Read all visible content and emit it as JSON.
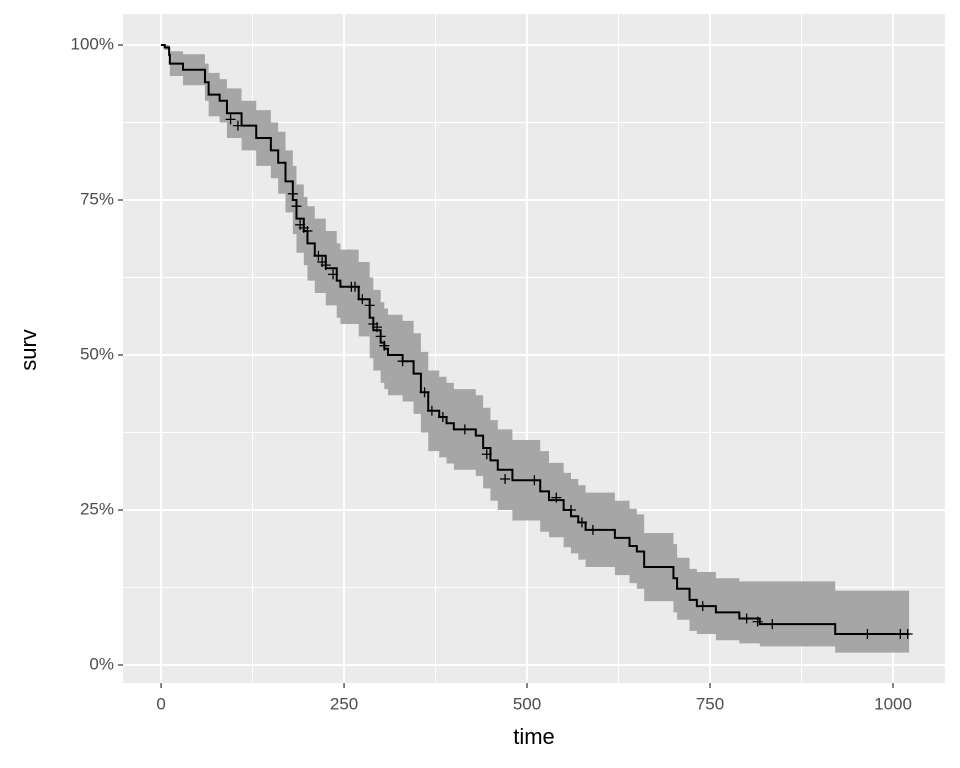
{
  "chart_data": {
    "type": "step",
    "x_label": "time",
    "y_label": "surv",
    "x": [
      0,
      5,
      11,
      12,
      30,
      60,
      65,
      80,
      90,
      110,
      130,
      150,
      160,
      170,
      180,
      185,
      195,
      200,
      210,
      225,
      240,
      245,
      270,
      285,
      290,
      300,
      305,
      310,
      330,
      345,
      355,
      365,
      380,
      390,
      400,
      430,
      440,
      450,
      460,
      480,
      518,
      530,
      550,
      560,
      570,
      580,
      620,
      640,
      650,
      660,
      700,
      705,
      722,
      732,
      758,
      790,
      818,
      921,
      1022
    ],
    "surv": [
      100,
      99.6,
      98.4,
      97,
      96,
      94,
      92,
      91,
      89,
      87,
      85,
      83,
      81,
      78,
      75,
      72,
      70,
      68,
      66,
      64,
      62,
      61,
      59,
      56,
      54,
      52,
      51,
      50,
      49,
      47,
      44,
      41,
      40,
      39,
      38,
      37,
      35,
      33,
      31.5,
      29.8,
      28,
      26.6,
      25,
      24,
      23,
      21.8,
      20.5,
      19.2,
      18.3,
      15.8,
      14,
      12.3,
      10.5,
      9.5,
      8.5,
      7.5,
      6.6,
      5.0,
      5.0
    ],
    "lower": [
      100,
      99.2,
      96.9,
      95,
      93.5,
      91,
      88.5,
      87.5,
      85,
      83,
      80.5,
      78.5,
      76,
      73,
      69.5,
      66.5,
      64.5,
      62,
      60,
      58,
      56,
      55,
      53,
      49.5,
      47.5,
      45.5,
      44.5,
      43.5,
      42.5,
      40.5,
      37.5,
      34.5,
      33.5,
      32.5,
      31.5,
      30.5,
      28.5,
      26.5,
      25,
      23.3,
      21.5,
      20.6,
      19,
      18,
      17,
      15.8,
      14.5,
      13.2,
      12.3,
      10.3,
      8.5,
      7.3,
      5.5,
      5,
      4,
      3.5,
      3,
      2,
      2
    ],
    "upper": [
      100,
      100,
      99.9,
      99,
      98.5,
      97,
      95.5,
      94.5,
      93,
      91,
      89.5,
      87.5,
      86,
      83,
      80.5,
      77.5,
      75.5,
      74,
      72,
      70,
      68,
      67,
      65,
      62.5,
      60.5,
      58.5,
      57.5,
      56.5,
      55.5,
      53.5,
      50.5,
      47.5,
      46.5,
      45.5,
      44.5,
      43.5,
      41.5,
      39.5,
      38,
      36.3,
      34.5,
      32.6,
      31,
      30,
      29,
      27.8,
      26.5,
      25.2,
      24.3,
      21.3,
      19.5,
      17.3,
      15.5,
      15,
      14,
      13.5,
      13.5,
      12,
      12
    ],
    "censor_x": [
      95,
      105,
      180,
      185,
      190,
      195,
      200,
      215,
      220,
      225,
      235,
      260,
      265,
      275,
      285,
      290,
      295,
      300,
      305,
      330,
      360,
      370,
      385,
      415,
      445,
      470,
      510,
      540,
      560,
      575,
      590,
      740,
      800,
      815,
      835,
      965,
      1010,
      1020
    ],
    "censor_y": [
      88,
      87,
      76,
      74,
      71,
      70.5,
      70,
      66,
      65,
      64.5,
      63,
      61,
      61,
      59,
      58,
      55,
      54.5,
      53,
      51.5,
      49,
      44,
      41,
      40,
      38,
      34,
      30,
      29.8,
      27,
      25,
      23,
      21.8,
      9.5,
      7.5,
      7,
      6.6,
      5,
      5,
      5
    ],
    "line_color": "#000000",
    "band_color": "#a6a6a6",
    "xlim": [
      -52,
      1071
    ],
    "ylim": [
      -2.9,
      105
    ],
    "xticks": [
      0,
      250,
      500,
      750,
      1000
    ],
    "yticks": [
      {
        "value": 0,
        "label": "0%"
      },
      {
        "value": 25,
        "label": "25%"
      },
      {
        "value": 50,
        "label": "50%"
      },
      {
        "value": 75,
        "label": "75%"
      },
      {
        "value": 100,
        "label": "100%"
      }
    ],
    "xminor": [
      125,
      375,
      625,
      875
    ],
    "yminor": [
      12.5,
      37.5,
      62.5,
      87.5
    ],
    "grid": true
  }
}
